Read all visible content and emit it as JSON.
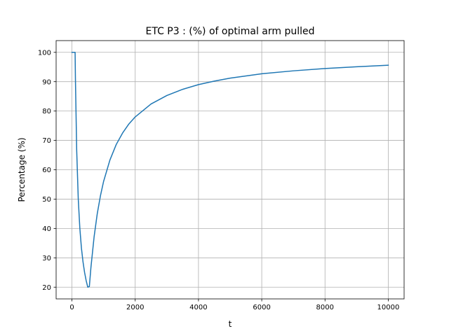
{
  "chart_data": {
    "type": "line",
    "title": "ETC P3 : (%) of optimal arm pulled",
    "xlabel": "t",
    "ylabel": "Percentage (%)",
    "xlim": [
      -500,
      10500
    ],
    "ylim": [
      16,
      104
    ],
    "grid": true,
    "legend": "none",
    "x_ticks": [
      0,
      2000,
      4000,
      6000,
      8000,
      10000
    ],
    "x_tick_labels": [
      "0",
      "2000",
      "4000",
      "6000",
      "8000",
      "10000"
    ],
    "y_ticks": [
      20,
      30,
      40,
      50,
      60,
      70,
      80,
      90,
      100
    ],
    "y_tick_labels": [
      "20",
      "30",
      "40",
      "50",
      "60",
      "70",
      "80",
      "90",
      "100"
    ],
    "series": [
      {
        "color": "#1f77b4",
        "x": [
          1,
          50,
          100,
          110,
          150,
          200,
          250,
          300,
          350,
          400,
          450,
          500,
          550,
          600,
          700,
          800,
          900,
          1000,
          1200,
          1400,
          1600,
          1800,
          2000,
          2500,
          3000,
          3500,
          4000,
          4500,
          5000,
          6000,
          7000,
          8000,
          9000,
          10000
        ],
        "y": [
          100,
          100,
          100,
          91,
          66.7,
          50,
          40,
          33.3,
          28.6,
          25,
          22.2,
          20,
          20.2,
          26.7,
          37.1,
          45,
          51.1,
          56,
          63.3,
          68.6,
          72.5,
          75.6,
          78,
          82.4,
          85.3,
          87.4,
          89,
          90.2,
          91.2,
          92.7,
          93.7,
          94.5,
          95.1,
          95.6
        ]
      }
    ]
  }
}
